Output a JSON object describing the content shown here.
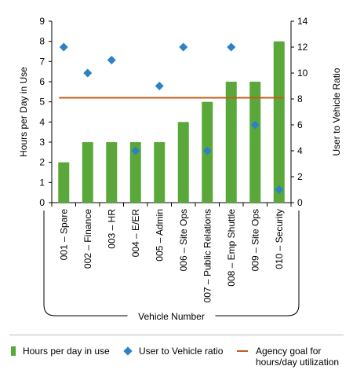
{
  "chart_data": {
    "type": "bar",
    "categories": [
      "001 – Spare",
      "002 – Finance",
      "003 – HR",
      "004 – E/ER",
      "005 – Admin",
      "006 – Site Ops",
      "007 – Public Relations",
      "008 – Emp Shuttle",
      "009 – Site Ops",
      "010 – Security"
    ],
    "series": [
      {
        "name": "Hours per day in use",
        "kind": "bar",
        "axis": "left",
        "color": "#5aa83a",
        "values": [
          2,
          3,
          3,
          3,
          3,
          4,
          5,
          6,
          6,
          8
        ]
      },
      {
        "name": "User to Vehicle ratio",
        "kind": "scatter",
        "axis": "right",
        "color": "#2d82c5",
        "values": [
          12,
          10,
          11,
          4,
          9,
          12,
          4,
          12,
          6,
          1
        ]
      },
      {
        "name": "Agency goal for hours/day utilization",
        "kind": "line",
        "axis": "left",
        "color": "#c45c1a",
        "value": 5.2
      }
    ],
    "xlabel": "Vehicle Number",
    "ylabel": "Hours per Day in Use",
    "y2label": "User to Vehicle Ratio",
    "ylim": [
      0,
      9
    ],
    "y2lim": [
      0,
      14
    ],
    "yticks": [
      "0",
      "1",
      "2",
      "3",
      "4",
      "5",
      "6",
      "7",
      "8",
      "9"
    ],
    "y2ticks": [
      "0",
      "2",
      "4",
      "6",
      "8",
      "10",
      "12",
      "14"
    ],
    "legend_position": "bottom"
  },
  "legend": {
    "bar_label": "Hours per day in use",
    "diamond_label": "User to Vehicle ratio",
    "line_label_1": "Agency goal for",
    "line_label_2": "hours/day utilization"
  }
}
